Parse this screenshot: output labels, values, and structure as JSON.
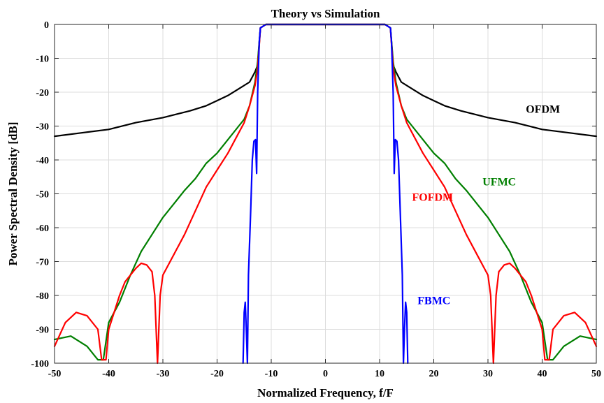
{
  "chart_data": {
    "type": "line",
    "title": "Theory vs Simulation",
    "xlabel": "Normalized Frequency, f/F",
    "ylabel": "Power Spectral Density [dB]",
    "xlim": [
      -50,
      50
    ],
    "ylim": [
      -100,
      0
    ],
    "xticks": [
      -50,
      -40,
      -30,
      -20,
      -10,
      0,
      10,
      20,
      30,
      40,
      50
    ],
    "yticks": [
      0,
      -10,
      -20,
      -30,
      -40,
      -50,
      -60,
      -70,
      -80,
      -90,
      -100
    ],
    "grid": true,
    "legend": "inline labels",
    "series": [
      {
        "name": "OFDM",
        "color": "#000000",
        "label_at": [
          37,
          -25
        ],
        "points": [
          [
            -50,
            -33
          ],
          [
            -45,
            -32
          ],
          [
            -40,
            -31
          ],
          [
            -35,
            -29
          ],
          [
            -30,
            -27.5
          ],
          [
            -25,
            -25.5
          ],
          [
            -22,
            -24
          ],
          [
            -20,
            -22.5
          ],
          [
            -18,
            -21
          ],
          [
            -16,
            -19
          ],
          [
            -14,
            -17
          ],
          [
            -13,
            -14
          ],
          [
            -12.5,
            -12
          ],
          [
            -12,
            -1
          ],
          [
            -11,
            0
          ],
          [
            11,
            0
          ],
          [
            12,
            -1
          ],
          [
            12.5,
            -12
          ],
          [
            13,
            -14
          ],
          [
            14,
            -17
          ],
          [
            16,
            -19
          ],
          [
            18,
            -21
          ],
          [
            20,
            -22.5
          ],
          [
            22,
            -24
          ],
          [
            25,
            -25.5
          ],
          [
            30,
            -27.5
          ],
          [
            35,
            -29
          ],
          [
            40,
            -31
          ],
          [
            45,
            -32
          ],
          [
            50,
            -33
          ]
        ]
      },
      {
        "name": "UFMC",
        "color": "#007f00",
        "label_at": [
          29,
          -46.5
        ],
        "points": [
          [
            -50,
            -93
          ],
          [
            -47,
            -92
          ],
          [
            -44,
            -95
          ],
          [
            -42,
            -99
          ],
          [
            -41,
            -99
          ],
          [
            -40,
            -88
          ],
          [
            -38,
            -82
          ],
          [
            -36,
            -74
          ],
          [
            -34,
            -67
          ],
          [
            -32,
            -62
          ],
          [
            -30,
            -57
          ],
          [
            -28,
            -53
          ],
          [
            -26,
            -49
          ],
          [
            -24,
            -45.5
          ],
          [
            -22,
            -41
          ],
          [
            -20,
            -38
          ],
          [
            -18,
            -34
          ],
          [
            -16,
            -30
          ],
          [
            -15,
            -28
          ],
          [
            -14,
            -24
          ],
          [
            -13,
            -17
          ],
          [
            -12.5,
            -11
          ],
          [
            -12,
            -1
          ],
          [
            -11,
            0
          ],
          [
            11,
            0
          ],
          [
            12,
            -1
          ],
          [
            12.5,
            -11
          ],
          [
            13,
            -17
          ],
          [
            14,
            -24
          ],
          [
            15,
            -28
          ],
          [
            16,
            -30
          ],
          [
            18,
            -34
          ],
          [
            20,
            -38
          ],
          [
            22,
            -41
          ],
          [
            24,
            -45.5
          ],
          [
            26,
            -49
          ],
          [
            28,
            -53
          ],
          [
            30,
            -57
          ],
          [
            32,
            -62
          ],
          [
            34,
            -67
          ],
          [
            36,
            -74
          ],
          [
            38,
            -82
          ],
          [
            40,
            -88
          ],
          [
            41,
            -99
          ],
          [
            42,
            -99
          ],
          [
            44,
            -95
          ],
          [
            47,
            -92
          ],
          [
            50,
            -93
          ]
        ]
      },
      {
        "name": "FOFDM",
        "color": "#ff0000",
        "label_at": [
          16,
          -51
        ],
        "points": [
          [
            -50,
            -95
          ],
          [
            -48,
            -88
          ],
          [
            -46,
            -85
          ],
          [
            -44,
            -86
          ],
          [
            -42,
            -90
          ],
          [
            -41.3,
            -99
          ],
          [
            -40.5,
            -99
          ],
          [
            -40,
            -90
          ],
          [
            -38,
            -80
          ],
          [
            -37,
            -76
          ],
          [
            -36,
            -74
          ],
          [
            -35,
            -72
          ],
          [
            -34,
            -70.5
          ],
          [
            -33,
            -71
          ],
          [
            -32,
            -73
          ],
          [
            -31.5,
            -80
          ],
          [
            -31,
            -100
          ],
          [
            -30.5,
            -80
          ],
          [
            -30,
            -74
          ],
          [
            -28,
            -68
          ],
          [
            -26,
            -62
          ],
          [
            -24,
            -55
          ],
          [
            -22,
            -48
          ],
          [
            -20,
            -43
          ],
          [
            -18,
            -38
          ],
          [
            -16,
            -32
          ],
          [
            -15,
            -29
          ],
          [
            -14,
            -24
          ],
          [
            -13,
            -18
          ],
          [
            -12.5,
            -13
          ],
          [
            -12,
            -1
          ],
          [
            -11,
            0
          ],
          [
            11,
            0
          ],
          [
            12,
            -1
          ],
          [
            12.5,
            -13
          ],
          [
            13,
            -18
          ],
          [
            14,
            -24
          ],
          [
            15,
            -29
          ],
          [
            16,
            -32
          ],
          [
            18,
            -38
          ],
          [
            20,
            -43
          ],
          [
            22,
            -48
          ],
          [
            24,
            -55
          ],
          [
            26,
            -62
          ],
          [
            28,
            -68
          ],
          [
            30,
            -74
          ],
          [
            30.5,
            -80
          ],
          [
            31,
            -100
          ],
          [
            31.5,
            -80
          ],
          [
            32,
            -73
          ],
          [
            33,
            -71
          ],
          [
            34,
            -70.5
          ],
          [
            35,
            -72
          ],
          [
            36,
            -74
          ],
          [
            37,
            -76
          ],
          [
            38,
            -80
          ],
          [
            40,
            -90
          ],
          [
            40.5,
            -99
          ],
          [
            41.3,
            -99
          ],
          [
            42,
            -90
          ],
          [
            44,
            -86
          ],
          [
            46,
            -85
          ],
          [
            48,
            -88
          ],
          [
            50,
            -95
          ]
        ]
      },
      {
        "name": "FBMC",
        "color": "#0000ff",
        "label_at": [
          17,
          -81.5
        ],
        "points": [
          [
            -15.2,
            -100
          ],
          [
            -15,
            -85
          ],
          [
            -14.8,
            -82
          ],
          [
            -14.6,
            -90
          ],
          [
            -14.4,
            -100
          ],
          [
            -14.2,
            -74
          ],
          [
            -13.8,
            -55
          ],
          [
            -13.5,
            -40
          ],
          [
            -13.2,
            -34.5
          ],
          [
            -12.9,
            -34
          ],
          [
            -12.7,
            -44
          ],
          [
            -12.5,
            -20
          ],
          [
            -12.2,
            -5
          ],
          [
            -12,
            -1
          ],
          [
            -11,
            0
          ],
          [
            11,
            0
          ],
          [
            12,
            -1
          ],
          [
            12.2,
            -5
          ],
          [
            12.5,
            -20
          ],
          [
            12.7,
            -44
          ],
          [
            12.9,
            -34
          ],
          [
            13.2,
            -34.5
          ],
          [
            13.5,
            -40
          ],
          [
            13.8,
            -55
          ],
          [
            14.2,
            -74
          ],
          [
            14.4,
            -100
          ],
          [
            14.6,
            -90
          ],
          [
            14.8,
            -82
          ],
          [
            15,
            -85
          ],
          [
            15.2,
            -100
          ]
        ]
      }
    ]
  }
}
